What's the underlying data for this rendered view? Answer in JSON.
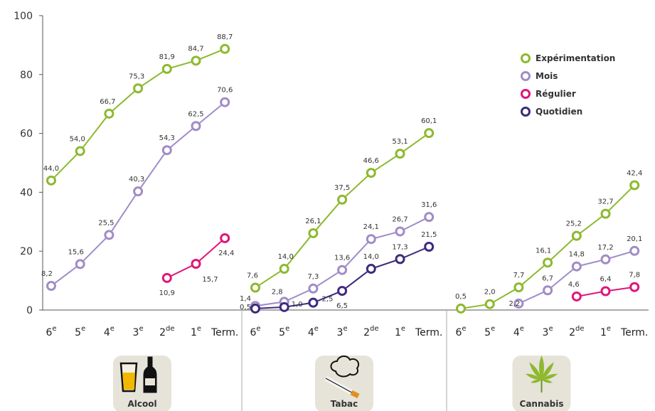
{
  "chart_data": {
    "type": "line",
    "ylim": [
      0,
      100
    ],
    "yticks": [
      0,
      20,
      40,
      60,
      80,
      100
    ],
    "grid": false,
    "legend_position": "top-right",
    "legend": [
      {
        "name": "Expérimentation",
        "color": "#8DB92E"
      },
      {
        "name": "Mois",
        "color": "#A08CC8"
      },
      {
        "name": "Régulier",
        "color": "#E0167A"
      },
      {
        "name": "Quotidien",
        "color": "#3E2A7E"
      }
    ],
    "panels": [
      {
        "label": "Alcool",
        "icon": "alcohol-icon",
        "categories": [
          {
            "base": "6",
            "sup": "e"
          },
          {
            "base": "5",
            "sup": "e"
          },
          {
            "base": "4",
            "sup": "e"
          },
          {
            "base": "3",
            "sup": "e"
          },
          {
            "base": "2",
            "sup": "de"
          },
          {
            "base": "1",
            "sup": "e"
          },
          {
            "base": "Term.",
            "sup": ""
          }
        ],
        "series": [
          {
            "name": "Expérimentation",
            "color": "#8DB92E",
            "start": 0,
            "values": [
              44.0,
              54.0,
              66.7,
              75.3,
              81.9,
              84.7,
              88.7
            ],
            "labels": [
              "44,0",
              "54,0",
              "66,7",
              "75,3",
              "81,9",
              "84,7",
              "88,7"
            ]
          },
          {
            "name": "Mois",
            "color": "#A08CC8",
            "start": 0,
            "values": [
              8.2,
              15.6,
              25.5,
              40.3,
              54.3,
              62.5,
              70.6
            ],
            "labels": [
              "8,2",
              "15,6",
              "25,5",
              "40,3",
              "54,3",
              "62,5",
              "70,6"
            ]
          },
          {
            "name": "Régulier",
            "color": "#E0167A",
            "start": 4,
            "values": [
              10.9,
              15.7,
              24.4
            ],
            "labels": [
              "10,9",
              "15,7",
              "24,4"
            ]
          }
        ]
      },
      {
        "label": "Tabac",
        "icon": "cigarette-icon",
        "categories": [
          {
            "base": "6",
            "sup": "e"
          },
          {
            "base": "5",
            "sup": "e"
          },
          {
            "base": "4",
            "sup": "e"
          },
          {
            "base": "3",
            "sup": "e"
          },
          {
            "base": "2",
            "sup": "de"
          },
          {
            "base": "1",
            "sup": "e"
          },
          {
            "base": "Term.",
            "sup": ""
          }
        ],
        "series": [
          {
            "name": "Expérimentation",
            "color": "#8DB92E",
            "start": 0,
            "values": [
              7.6,
              14.0,
              26.1,
              37.5,
              46.6,
              53.1,
              60.1
            ],
            "labels": [
              "7,6",
              "14,0",
              "26,1",
              "37,5",
              "46,6",
              "53,1",
              "60,1"
            ]
          },
          {
            "name": "Mois",
            "color": "#A08CC8",
            "start": 0,
            "values": [
              1.4,
              2.8,
              7.3,
              13.6,
              24.1,
              26.7,
              31.6
            ],
            "labels": [
              "1,4",
              "2,8",
              "7,3",
              "13,6",
              "24,1",
              "26,7",
              "31,6"
            ]
          },
          {
            "name": "Quotidien",
            "color": "#3E2A7E",
            "start": 0,
            "values": [
              0.5,
              1.0,
              2.5,
              6.5,
              14.0,
              17.3,
              21.5
            ],
            "labels": [
              "0,5",
              "1,0",
              "2,5",
              "6,5",
              "14,0",
              "17,3",
              "21,5"
            ]
          }
        ]
      },
      {
        "label": "Cannabis",
        "icon": "cannabis-leaf-icon",
        "categories": [
          {
            "base": "6",
            "sup": "e"
          },
          {
            "base": "5",
            "sup": "e"
          },
          {
            "base": "4",
            "sup": "e"
          },
          {
            "base": "3",
            "sup": "e"
          },
          {
            "base": "2",
            "sup": "de"
          },
          {
            "base": "1",
            "sup": "e"
          },
          {
            "base": "Term.",
            "sup": ""
          }
        ],
        "series": [
          {
            "name": "Expérimentation",
            "color": "#8DB92E",
            "start": 0,
            "values": [
              0.5,
              2.0,
              7.7,
              16.1,
              25.2,
              32.7,
              42.4
            ],
            "labels": [
              "0,5",
              "2,0",
              "7,7",
              "16,1",
              "25,2",
              "32,7",
              "42,4"
            ]
          },
          {
            "name": "Mois",
            "color": "#A08CC8",
            "start": 2,
            "values": [
              2.2,
              6.7,
              14.8,
              17.2,
              20.1
            ],
            "labels": [
              "2,2",
              "6,7",
              "14,8",
              "17,2",
              "20,1"
            ]
          },
          {
            "name": "Régulier",
            "color": "#E0167A",
            "start": 4,
            "values": [
              4.6,
              6.4,
              7.8
            ],
            "labels": [
              "4,6",
              "6,4",
              "7,8"
            ]
          }
        ]
      }
    ]
  }
}
